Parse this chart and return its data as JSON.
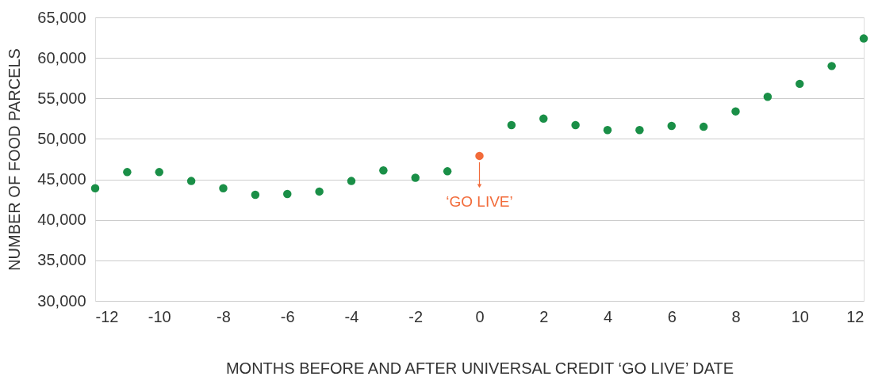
{
  "chart_data": {
    "type": "scatter",
    "xlabel": "MONTHS BEFORE AND AFTER UNIVERSAL CREDIT ‘GO LIVE’ DATE",
    "ylabel": "NUMBER OF FOOD PARCELS",
    "x": [
      -12,
      -11,
      -10,
      -9,
      -8,
      -7,
      -6,
      -5,
      -4,
      -3,
      -2,
      -1,
      0,
      1,
      2,
      3,
      4,
      5,
      6,
      7,
      8,
      9,
      10,
      11,
      12
    ],
    "values": [
      43900,
      45900,
      45900,
      44800,
      43900,
      43100,
      43200,
      43500,
      44800,
      46100,
      45200,
      46000,
      47900,
      51700,
      52500,
      51700,
      51100,
      51100,
      51600,
      51500,
      53400,
      55200,
      56800,
      59000,
      62400
    ],
    "colors": [
      "#1a8f47",
      "#1a8f47",
      "#1a8f47",
      "#1a8f47",
      "#1a8f47",
      "#1a8f47",
      "#1a8f47",
      "#1a8f47",
      "#1a8f47",
      "#1a8f47",
      "#1a8f47",
      "#1a8f47",
      "#f26b3a",
      "#1a8f47",
      "#1a8f47",
      "#1a8f47",
      "#1a8f47",
      "#1a8f47",
      "#1a8f47",
      "#1a8f47",
      "#1a8f47",
      "#1a8f47",
      "#1a8f47",
      "#1a8f47",
      "#1a8f47"
    ],
    "xlim": [
      -12,
      12
    ],
    "xticks": [
      -12,
      -10,
      -8,
      -6,
      -4,
      -2,
      0,
      2,
      4,
      6,
      8,
      10,
      12
    ],
    "ylim": [
      30000,
      65000
    ],
    "yticks": [
      {
        "value": 30000,
        "label": "30,000"
      },
      {
        "value": 35000,
        "label": "35,000"
      },
      {
        "value": 40000,
        "label": "40,000"
      },
      {
        "value": 45000,
        "label": "45,000"
      },
      {
        "value": 50000,
        "label": "50,000"
      },
      {
        "value": 55000,
        "label": "55,000"
      },
      {
        "value": 60000,
        "label": "60,000"
      },
      {
        "value": 65000,
        "label": "65,000"
      }
    ],
    "grid": "y",
    "marker": "circle",
    "annotations": [
      {
        "text": "‘GO LIVE’",
        "x": 0,
        "y": 47900
      }
    ]
  }
}
